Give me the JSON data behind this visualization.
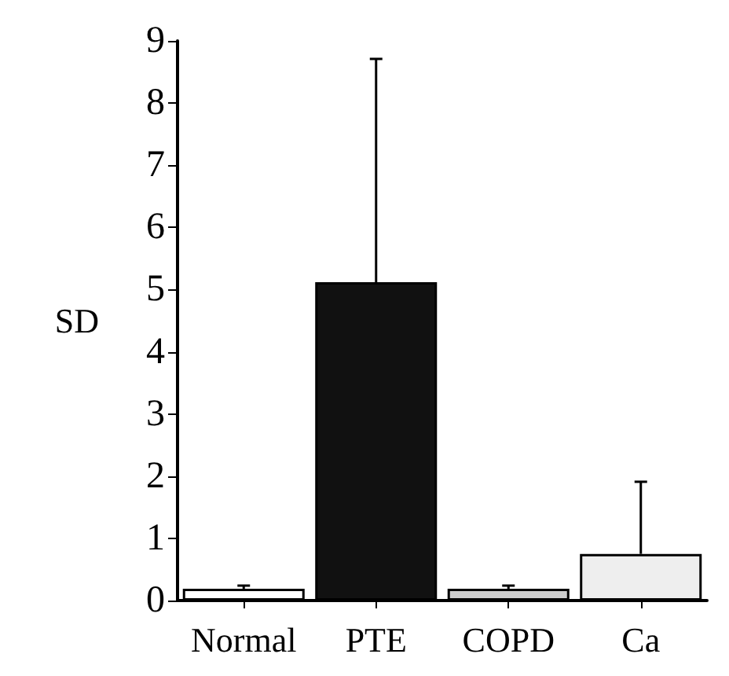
{
  "chart_data": {
    "type": "bar",
    "ylabel": "SD",
    "categories": [
      "Normal",
      "PTE",
      "COPD",
      "Ca"
    ],
    "values": [
      0.19,
      5.12,
      0.19,
      0.75
    ],
    "colors": [
      "#ffffff",
      "#111111",
      "#cccccc",
      "#eeeeee"
    ],
    "errors": [
      [
        0.19,
        0.24
      ],
      [
        5.12,
        8.71
      ],
      [
        0.19,
        0.24
      ],
      [
        0.75,
        1.91
      ]
    ],
    "ylim": [
      0,
      9
    ],
    "yticks": [
      0,
      1,
      2,
      3,
      4,
      5,
      6,
      7,
      8,
      9
    ],
    "grid": false
  }
}
